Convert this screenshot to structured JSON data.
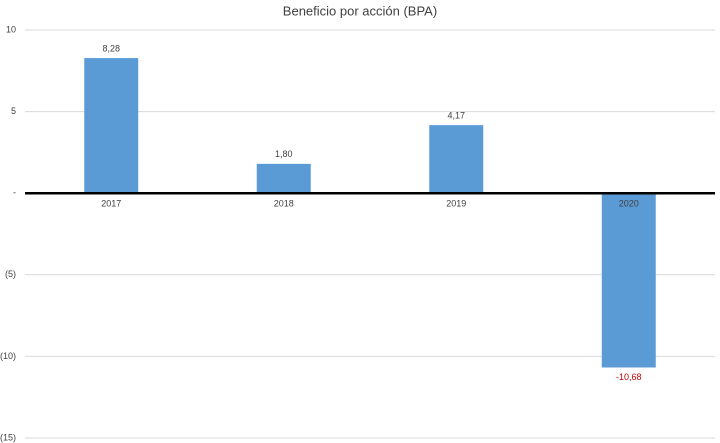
{
  "chart_data": {
    "type": "bar",
    "title": "Beneficio por acción (BPA)",
    "categories": [
      "2017",
      "2018",
      "2019",
      "2020"
    ],
    "values": [
      8.28,
      1.8,
      4.17,
      -10.68
    ],
    "value_labels": [
      "8,28",
      "1,80",
      "4,17",
      "-10,68"
    ],
    "color": "#5b9bd5",
    "negative_label_color": "#c00000",
    "ylim": [
      -15,
      10
    ],
    "yticks": [
      10,
      5,
      {
        "value": 0,
        "label": "-"
      },
      {
        "value": -5,
        "label": "(5)"
      },
      {
        "value": -10,
        "label": "(10)"
      },
      {
        "value": -15,
        "label": "(15)"
      }
    ],
    "grid": true
  }
}
